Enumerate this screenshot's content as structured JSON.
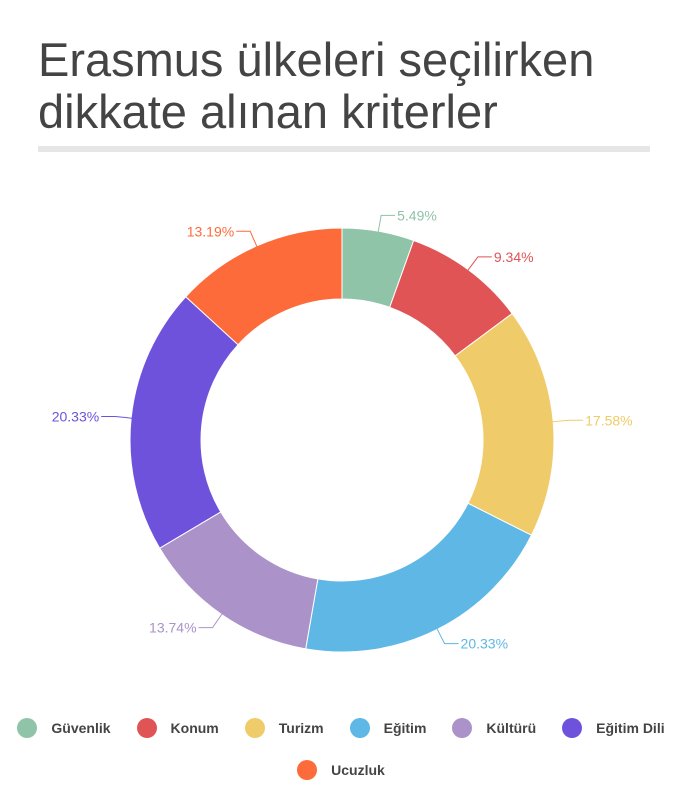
{
  "title": "Erasmus ülkeleri seçilirken\ndikkate alınan kriterler",
  "chart_data": {
    "type": "pie",
    "donut": true,
    "categories": [
      "Güvenlik",
      "Konum",
      "Turizm",
      "Eğitim",
      "Kültürü",
      "Eğitim Dili",
      "Ucuzluk"
    ],
    "values": [
      5.49,
      9.34,
      17.58,
      20.33,
      13.74,
      20.33,
      13.19
    ],
    "labels": [
      "5.49%",
      "9.34%",
      "17.58%",
      "20.33%",
      "13.74%",
      "20.33%",
      "13.19%"
    ],
    "colors": [
      "#8fc4a8",
      "#e05456",
      "#f0cb69",
      "#5fb7e5",
      "#ab92c8",
      "#6e52dc",
      "#fd6b3a"
    ],
    "legend_position": "bottom"
  }
}
